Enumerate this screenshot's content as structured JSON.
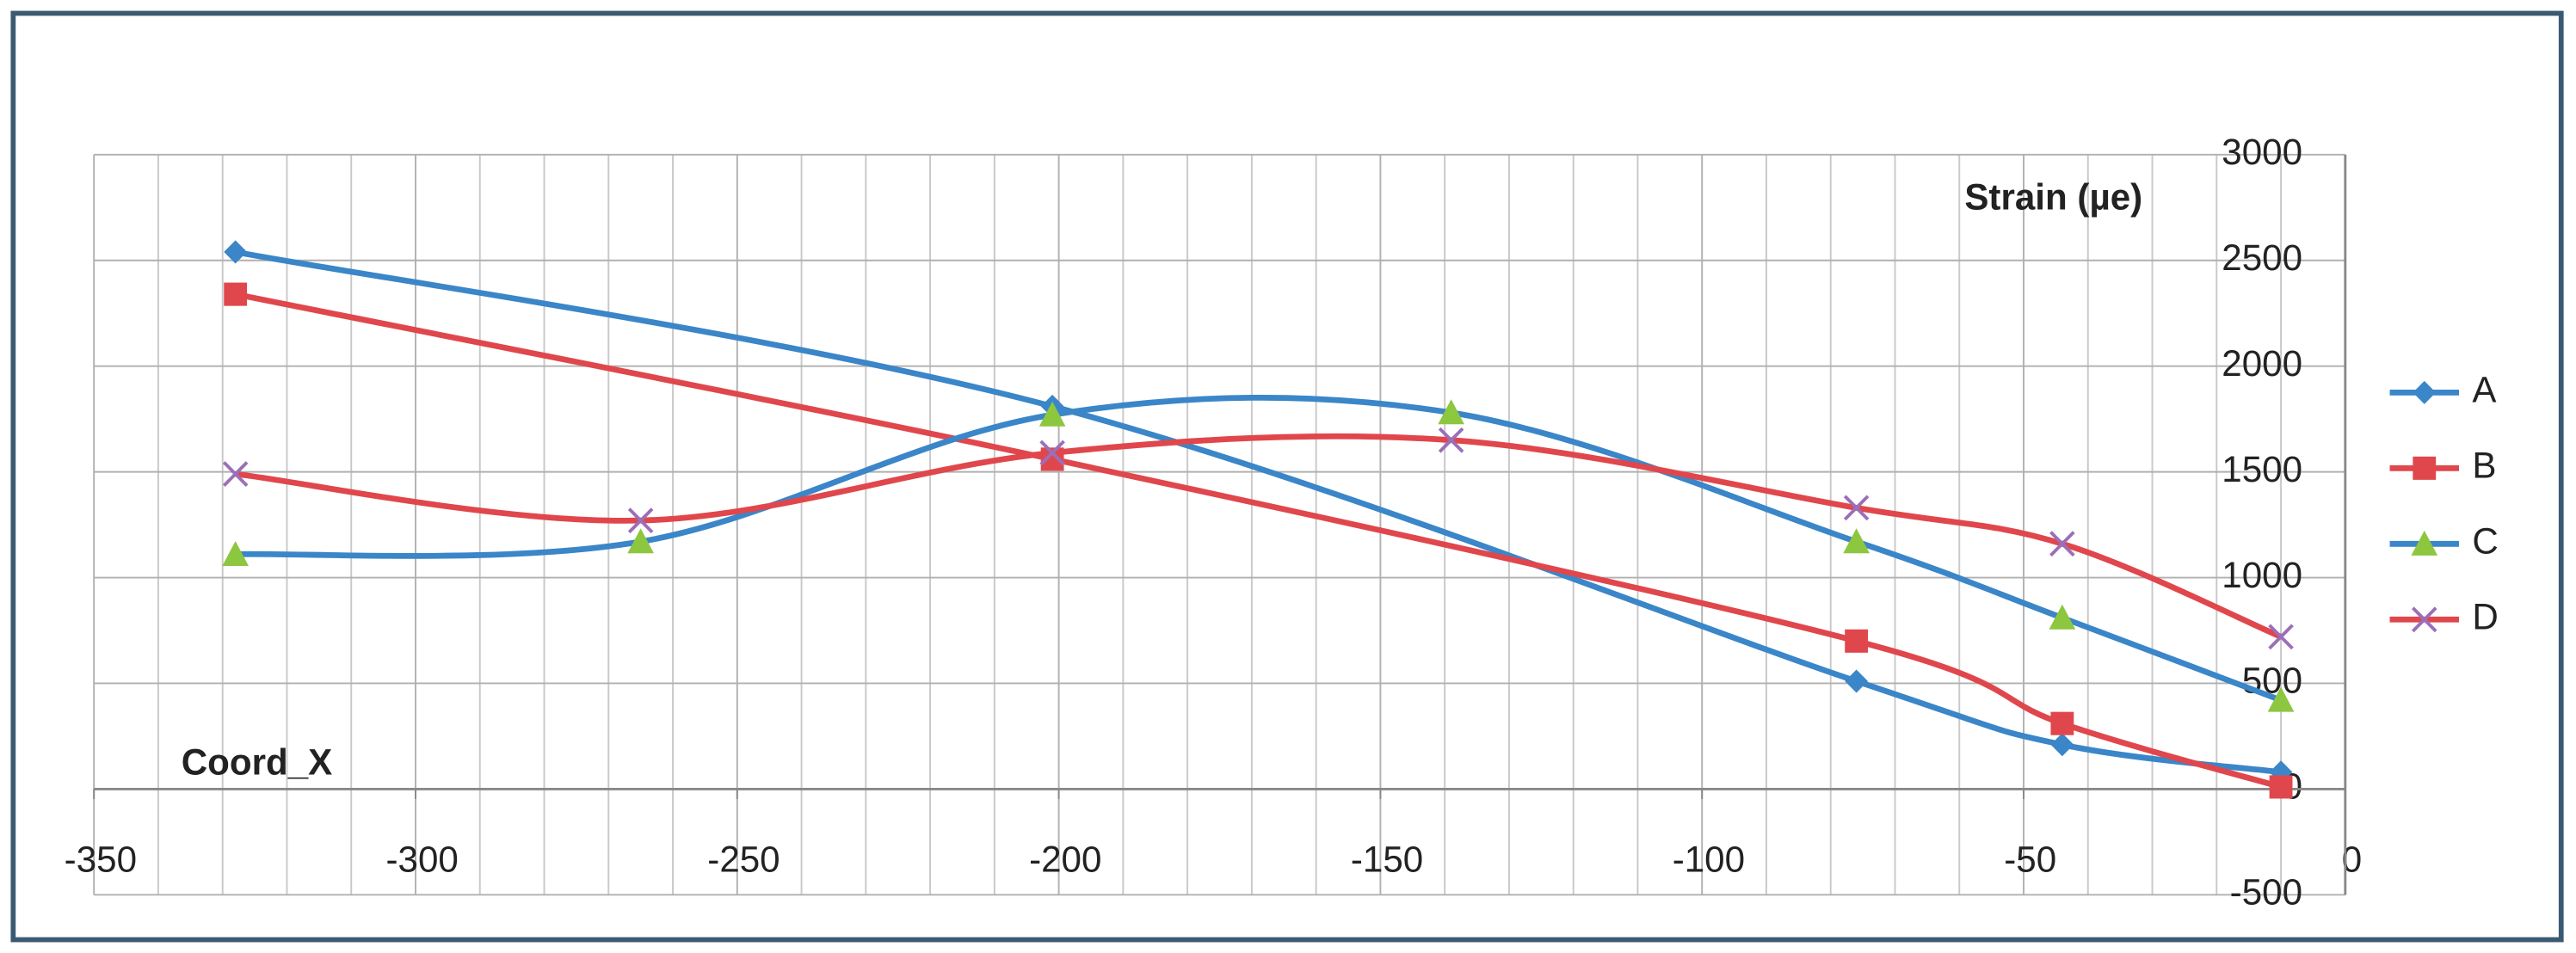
{
  "chart_data": {
    "type": "line",
    "smooth": true,
    "x_label": "Coord_X",
    "y_label": "Strain (µe)",
    "xlim": [
      -350,
      0
    ],
    "xticks": [
      -350,
      -300,
      -250,
      -200,
      -150,
      -100,
      -50,
      0
    ],
    "xminorticks": [
      -340,
      -330,
      -320,
      -310,
      -290,
      -280,
      -270,
      -260,
      -240,
      -230,
      -220,
      -210,
      -190,
      -180,
      -170,
      -160,
      -140,
      -130,
      -120,
      -110,
      -90,
      -80,
      -70,
      -60,
      -40,
      -30,
      -20,
      -10
    ],
    "ylim": [
      -500,
      3000
    ],
    "yticks": [
      -500,
      0,
      500,
      1000,
      1500,
      2000,
      2500,
      3000
    ],
    "grid": true,
    "legend": "right",
    "series": [
      {
        "name": "A",
        "color": "#3a86c8",
        "marker": "diamond",
        "marker_color": "#3a86c8",
        "x": [
          -328,
          -201,
          -76,
          -44,
          -10
        ],
        "values": [
          2540,
          1810,
          510,
          210,
          80
        ]
      },
      {
        "name": "B",
        "color": "#e0474c",
        "marker": "square",
        "marker_color": "#e0474c",
        "x": [
          -328,
          -201,
          -76,
          -44,
          -10
        ],
        "values": [
          2340,
          1560,
          700,
          310,
          10
        ]
      },
      {
        "name": "C",
        "color": "#3a86c8",
        "marker": "triangle",
        "marker_color": "#8dc63f",
        "x": [
          -328,
          -265,
          -201,
          -139,
          -76,
          -44,
          -10
        ],
        "values": [
          1110,
          1170,
          1770,
          1780,
          1170,
          810,
          420
        ]
      },
      {
        "name": "D",
        "color": "#e0474c",
        "marker": "x",
        "marker_color": "#9b6fb8",
        "x": [
          -328,
          -265,
          -201,
          -139,
          -76,
          -44,
          -10
        ],
        "values": [
          1490,
          1270,
          1590,
          1650,
          1330,
          1160,
          720
        ]
      }
    ]
  }
}
